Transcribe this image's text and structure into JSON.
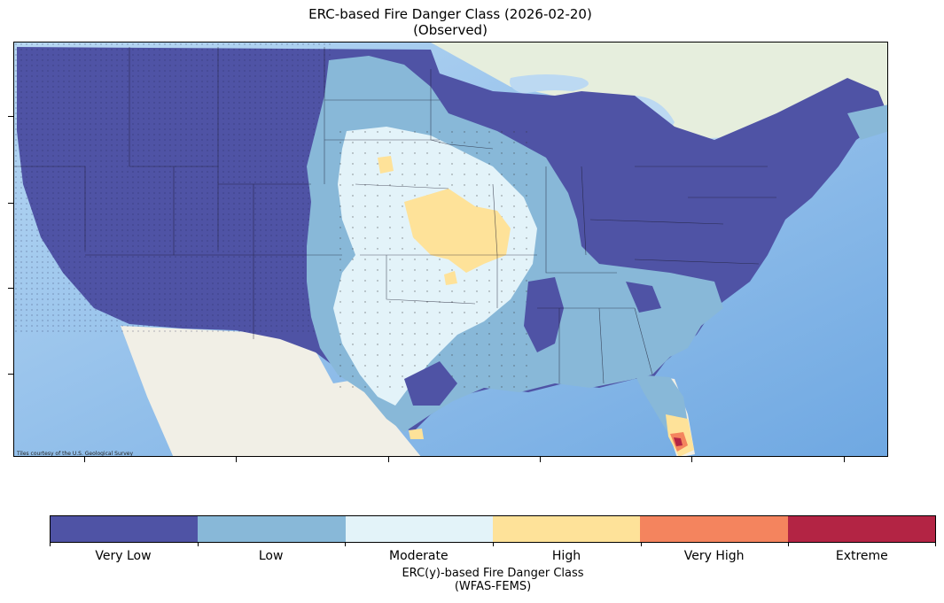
{
  "title": {
    "line1": "ERC-based Fire Danger Class (2026-02-20)",
    "line2": "(Observed)"
  },
  "map": {
    "attribution": "Tiles courtesy of the U.S. Geological Survey",
    "basemap_colors": {
      "ocean": "#8fbfe9",
      "land": "#f1efe6",
      "canada": "#e6eedd"
    }
  },
  "colorbar": {
    "classes": [
      {
        "label": "Very Low",
        "color": "#4f53a5"
      },
      {
        "label": "Low",
        "color": "#88b8d8"
      },
      {
        "label": "Moderate",
        "color": "#e3f3f9"
      },
      {
        "label": "High",
        "color": "#fee299"
      },
      {
        "label": "Very High",
        "color": "#f4845e"
      },
      {
        "label": "Extreme",
        "color": "#b32444"
      }
    ],
    "title_line1": "ERC(y)-based Fire Danger Class",
    "title_line2": "(WFAS-FEMS)"
  }
}
